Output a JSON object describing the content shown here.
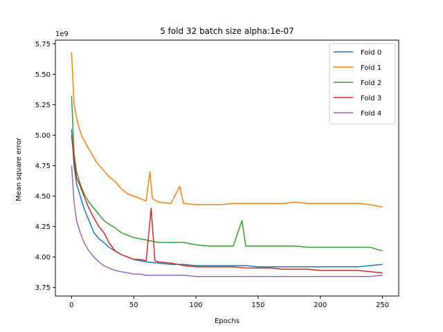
{
  "chart_data": {
    "type": "line",
    "title": "5 fold 32 batch size alpha:1e-07",
    "xlabel": "Epochs",
    "ylabel": "Mean square error",
    "y_scale_text": "1e9",
    "xlim": [
      -13,
      263
    ],
    "ylim": [
      3.68,
      5.78
    ],
    "x_ticks": [
      0,
      50,
      100,
      150,
      200,
      250
    ],
    "y_ticks": [
      3.75,
      4.0,
      4.25,
      4.5,
      4.75,
      5.0,
      5.25,
      5.5,
      5.75
    ],
    "y_tick_labels": [
      "3.75",
      "4.00",
      "4.25",
      "4.50",
      "4.75",
      "5.00",
      "5.25",
      "5.50",
      "5.75"
    ],
    "legend_position": "top-right",
    "grid": false,
    "series": [
      {
        "name": "Fold 0",
        "color": "#1f77b4",
        "points": [
          [
            0,
            5.05
          ],
          [
            2,
            4.75
          ],
          [
            4,
            4.6
          ],
          [
            7,
            4.5
          ],
          [
            10,
            4.4
          ],
          [
            14,
            4.3
          ],
          [
            18,
            4.2
          ],
          [
            22,
            4.15
          ],
          [
            26,
            4.12
          ],
          [
            30,
            4.08
          ],
          [
            35,
            4.05
          ],
          [
            40,
            4.02
          ],
          [
            45,
            4.0
          ],
          [
            50,
            3.98
          ],
          [
            55,
            3.97
          ],
          [
            60,
            3.96
          ],
          [
            70,
            3.95
          ],
          [
            80,
            3.94
          ],
          [
            90,
            3.94
          ],
          [
            100,
            3.93
          ],
          [
            110,
            3.93
          ],
          [
            120,
            3.93
          ],
          [
            130,
            3.93
          ],
          [
            140,
            3.93
          ],
          [
            150,
            3.92
          ],
          [
            160,
            3.92
          ],
          [
            170,
            3.92
          ],
          [
            180,
            3.92
          ],
          [
            190,
            3.92
          ],
          [
            200,
            3.92
          ],
          [
            210,
            3.92
          ],
          [
            220,
            3.92
          ],
          [
            230,
            3.92
          ],
          [
            240,
            3.93
          ],
          [
            250,
            3.94
          ]
        ]
      },
      {
        "name": "Fold 1",
        "color": "#ff7f0e",
        "points": [
          [
            0,
            5.68
          ],
          [
            2,
            5.25
          ],
          [
            5,
            5.1
          ],
          [
            8,
            5.0
          ],
          [
            12,
            4.92
          ],
          [
            16,
            4.85
          ],
          [
            20,
            4.78
          ],
          [
            25,
            4.72
          ],
          [
            30,
            4.66
          ],
          [
            35,
            4.62
          ],
          [
            40,
            4.56
          ],
          [
            45,
            4.52
          ],
          [
            50,
            4.5
          ],
          [
            55,
            4.48
          ],
          [
            60,
            4.46
          ],
          [
            63,
            4.7
          ],
          [
            65,
            4.48
          ],
          [
            70,
            4.45
          ],
          [
            80,
            4.44
          ],
          [
            87,
            4.58
          ],
          [
            90,
            4.44
          ],
          [
            100,
            4.43
          ],
          [
            110,
            4.43
          ],
          [
            120,
            4.43
          ],
          [
            130,
            4.44
          ],
          [
            140,
            4.44
          ],
          [
            150,
            4.44
          ],
          [
            160,
            4.44
          ],
          [
            170,
            4.44
          ],
          [
            180,
            4.45
          ],
          [
            190,
            4.44
          ],
          [
            200,
            4.44
          ],
          [
            210,
            4.44
          ],
          [
            220,
            4.44
          ],
          [
            230,
            4.44
          ],
          [
            240,
            4.43
          ],
          [
            250,
            4.41
          ]
        ]
      },
      {
        "name": "Fold 2",
        "color": "#2ca02c",
        "points": [
          [
            0,
            5.32
          ],
          [
            2,
            4.85
          ],
          [
            4,
            4.7
          ],
          [
            7,
            4.6
          ],
          [
            10,
            4.52
          ],
          [
            14,
            4.45
          ],
          [
            18,
            4.4
          ],
          [
            22,
            4.35
          ],
          [
            26,
            4.3
          ],
          [
            30,
            4.27
          ],
          [
            35,
            4.24
          ],
          [
            40,
            4.2
          ],
          [
            45,
            4.18
          ],
          [
            50,
            4.16
          ],
          [
            55,
            4.15
          ],
          [
            60,
            4.14
          ],
          [
            70,
            4.12
          ],
          [
            80,
            4.12
          ],
          [
            90,
            4.12
          ],
          [
            100,
            4.1
          ],
          [
            110,
            4.09
          ],
          [
            120,
            4.09
          ],
          [
            130,
            4.09
          ],
          [
            137,
            4.3
          ],
          [
            140,
            4.09
          ],
          [
            150,
            4.09
          ],
          [
            160,
            4.09
          ],
          [
            170,
            4.09
          ],
          [
            180,
            4.09
          ],
          [
            190,
            4.08
          ],
          [
            200,
            4.08
          ],
          [
            210,
            4.08
          ],
          [
            220,
            4.08
          ],
          [
            230,
            4.08
          ],
          [
            240,
            4.08
          ],
          [
            250,
            4.05
          ]
        ]
      },
      {
        "name": "Fold 3",
        "color": "#d62728",
        "points": [
          [
            0,
            5.0
          ],
          [
            2,
            4.8
          ],
          [
            4,
            4.65
          ],
          [
            7,
            4.58
          ],
          [
            10,
            4.5
          ],
          [
            14,
            4.4
          ],
          [
            18,
            4.32
          ],
          [
            22,
            4.25
          ],
          [
            26,
            4.2
          ],
          [
            30,
            4.12
          ],
          [
            35,
            4.05
          ],
          [
            40,
            4.02
          ],
          [
            45,
            4.0
          ],
          [
            50,
            3.98
          ],
          [
            55,
            3.98
          ],
          [
            60,
            3.97
          ],
          [
            64,
            4.4
          ],
          [
            67,
            3.97
          ],
          [
            70,
            3.96
          ],
          [
            80,
            3.95
          ],
          [
            90,
            3.93
          ],
          [
            100,
            3.92
          ],
          [
            110,
            3.92
          ],
          [
            120,
            3.92
          ],
          [
            130,
            3.92
          ],
          [
            140,
            3.91
          ],
          [
            150,
            3.91
          ],
          [
            160,
            3.91
          ],
          [
            170,
            3.9
          ],
          [
            180,
            3.9
          ],
          [
            190,
            3.9
          ],
          [
            200,
            3.89
          ],
          [
            210,
            3.89
          ],
          [
            220,
            3.89
          ],
          [
            230,
            3.89
          ],
          [
            240,
            3.88
          ],
          [
            250,
            3.87
          ]
        ]
      },
      {
        "name": "Fold 4",
        "color": "#9467bd",
        "points": [
          [
            0,
            4.75
          ],
          [
            2,
            4.45
          ],
          [
            4,
            4.3
          ],
          [
            7,
            4.2
          ],
          [
            10,
            4.12
          ],
          [
            14,
            4.05
          ],
          [
            18,
            4.0
          ],
          [
            22,
            3.96
          ],
          [
            26,
            3.93
          ],
          [
            30,
            3.91
          ],
          [
            35,
            3.89
          ],
          [
            40,
            3.88
          ],
          [
            45,
            3.87
          ],
          [
            50,
            3.86
          ],
          [
            55,
            3.86
          ],
          [
            60,
            3.85
          ],
          [
            70,
            3.85
          ],
          [
            80,
            3.85
          ],
          [
            90,
            3.85
          ],
          [
            100,
            3.84
          ],
          [
            110,
            3.84
          ],
          [
            120,
            3.84
          ],
          [
            130,
            3.84
          ],
          [
            140,
            3.84
          ],
          [
            150,
            3.84
          ],
          [
            160,
            3.84
          ],
          [
            170,
            3.84
          ],
          [
            180,
            3.84
          ],
          [
            190,
            3.84
          ],
          [
            200,
            3.84
          ],
          [
            210,
            3.84
          ],
          [
            220,
            3.84
          ],
          [
            230,
            3.84
          ],
          [
            240,
            3.84
          ],
          [
            250,
            3.85
          ]
        ]
      }
    ]
  }
}
